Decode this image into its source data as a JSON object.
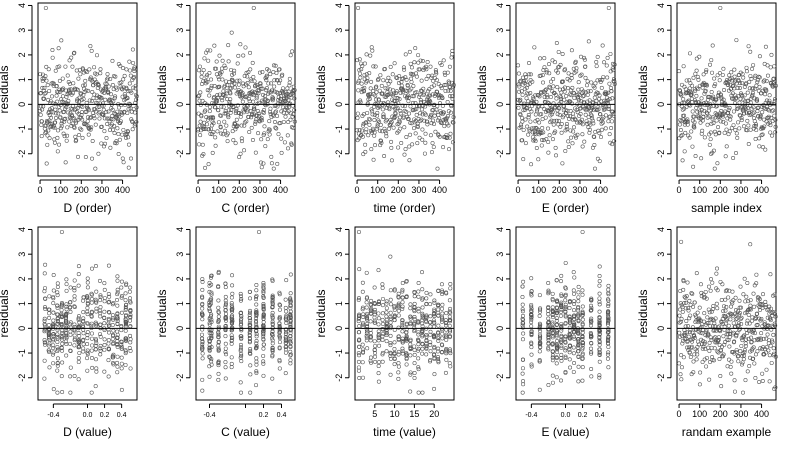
{
  "style": {
    "point_color": "#555555",
    "line_color": "#000000",
    "background": "#ffffff"
  },
  "chart_data": [
    {
      "type": "scatter",
      "xlabel": "D (order)",
      "ylabel": "residuals",
      "xlim": [
        -10,
        470
      ],
      "ylim": [
        -2.9,
        4.1
      ],
      "xticks": [
        0,
        100,
        200,
        300,
        400
      ],
      "yticks": [
        -2,
        -1,
        0,
        1,
        2,
        3,
        4
      ],
      "xtick_labels": [
        "0",
        "100",
        "200",
        "300",
        "400"
      ],
      "ytick_labels": [
        "-2",
        "-1",
        "0",
        "1",
        "2",
        "3",
        "4"
      ],
      "hline": 0,
      "x_pattern": {
        "kind": "index",
        "n": 470
      },
      "outliers": [
        {
          "x": 28,
          "y": 3.9
        }
      ],
      "seed": 11
    },
    {
      "type": "scatter",
      "xlabel": "C (order)",
      "ylabel": "residuals",
      "xlim": [
        -10,
        470
      ],
      "ylim": [
        -2.9,
        4.1
      ],
      "xticks": [
        0,
        100,
        200,
        300,
        400
      ],
      "yticks": [
        -2,
        -1,
        0,
        1,
        2,
        3,
        4
      ],
      "xtick_labels": [
        "0",
        "100",
        "200",
        "300",
        "400"
      ],
      "ytick_labels": [
        "-2",
        "-1",
        "0",
        "1",
        "2",
        "3",
        "4"
      ],
      "hline": 0,
      "x_pattern": {
        "kind": "index",
        "n": 470
      },
      "outliers": [
        {
          "x": 270,
          "y": 3.9
        }
      ],
      "seed": 23
    },
    {
      "type": "scatter",
      "xlabel": "time (order)",
      "ylabel": "residuals",
      "xlim": [
        -10,
        470
      ],
      "ylim": [
        -2.9,
        4.1
      ],
      "xticks": [
        0,
        100,
        200,
        300,
        400
      ],
      "yticks": [
        -2,
        -1,
        0,
        1,
        2,
        3,
        4
      ],
      "xtick_labels": [
        "0",
        "100",
        "200",
        "300",
        "400"
      ],
      "ytick_labels": [
        "-2",
        "-1",
        "0",
        "1",
        "2",
        "3",
        "4"
      ],
      "hline": 0,
      "x_pattern": {
        "kind": "index",
        "n": 470
      },
      "outliers": [
        {
          "x": 5,
          "y": 3.9
        }
      ],
      "seed": 37
    },
    {
      "type": "scatter",
      "xlabel": "E (order)",
      "ylabel": "residuals",
      "xlim": [
        -10,
        470
      ],
      "ylim": [
        -2.9,
        4.1
      ],
      "xticks": [
        0,
        100,
        200,
        300,
        400
      ],
      "yticks": [
        -2,
        -1,
        0,
        1,
        2,
        3,
        4
      ],
      "xtick_labels": [
        "0",
        "100",
        "200",
        "300",
        "400"
      ],
      "ytick_labels": [
        "-2",
        "-1",
        "0",
        "1",
        "2",
        "3",
        "4"
      ],
      "hline": 0,
      "x_pattern": {
        "kind": "index",
        "n": 470
      },
      "outliers": [
        {
          "x": 440,
          "y": 3.9
        }
      ],
      "seed": 41
    },
    {
      "type": "scatter",
      "xlabel": "sample index",
      "ylabel": "residuals",
      "xlim": [
        -10,
        470
      ],
      "ylim": [
        -2.9,
        4.1
      ],
      "xticks": [
        0,
        100,
        200,
        300,
        400
      ],
      "yticks": [
        -2,
        -1,
        0,
        1,
        2,
        3,
        4
      ],
      "xtick_labels": [
        "0",
        "100",
        "200",
        "300",
        "400"
      ],
      "ytick_labels": [
        "-2",
        "-1",
        "0",
        "1",
        "2",
        "3",
        "4"
      ],
      "hline": 0,
      "x_pattern": {
        "kind": "index",
        "n": 470
      },
      "outliers": [
        {
          "x": 200,
          "y": 3.9
        }
      ],
      "seed": 53
    },
    {
      "type": "scatter",
      "xlabel": "D (value)",
      "ylabel": "residuals",
      "xlim": [
        -0.58,
        0.58
      ],
      "ylim": [
        -2.9,
        4.1
      ],
      "xticks": [
        -0.4,
        0.0,
        0.2,
        0.4
      ],
      "yticks": [
        -2,
        -1,
        0,
        1,
        2,
        3,
        4
      ],
      "xtick_labels": [
        "-0.4",
        "0.0",
        "0.2",
        "0.4"
      ],
      "ytick_labels": [
        "-2",
        "-1",
        "0",
        "1",
        "2",
        "3",
        "4"
      ],
      "hline": 0,
      "x_pattern": {
        "kind": "discrete",
        "n": 470,
        "levels": [
          -0.5,
          -0.45,
          -0.4,
          -0.35,
          -0.3,
          -0.25,
          -0.2,
          -0.15,
          -0.1,
          -0.05,
          0.0,
          0.05,
          0.1,
          0.15,
          0.2,
          0.25,
          0.3,
          0.35,
          0.4,
          0.45,
          0.5
        ],
        "jitter": 0.005
      },
      "outliers": [
        {
          "x": -0.3,
          "y": 3.9
        }
      ],
      "seed": 67
    },
    {
      "type": "scatter",
      "xlabel": "C (value)",
      "ylabel": "residuals",
      "xlim": [
        -0.55,
        0.55
      ],
      "ylim": [
        -2.9,
        4.1
      ],
      "xticks": [
        -0.4,
        0.0,
        0.2,
        0.4
      ],
      "yticks": [
        -2,
        -1,
        0,
        1,
        2,
        3,
        4
      ],
      "xtick_labels": [
        "-0.4",
        "",
        "0.2",
        "0.4"
      ],
      "ytick_labels": [
        "-2",
        "-1",
        "0",
        "1",
        "2",
        "3",
        "4"
      ],
      "hline": 0,
      "x_pattern": {
        "kind": "discrete",
        "n": 470,
        "levels": [
          -0.48,
          -0.4,
          -0.38,
          -0.3,
          -0.22,
          -0.15,
          -0.05,
          0.05,
          0.12,
          0.2,
          0.3,
          0.38,
          0.45,
          0.5
        ],
        "jitter": 0.004
      },
      "outliers": [
        {
          "x": 0.15,
          "y": 3.9
        }
      ],
      "seed": 71
    },
    {
      "type": "scatter",
      "xlabel": "time (value)",
      "ylabel": "residuals",
      "xlim": [
        0,
        25
      ],
      "ylim": [
        -2.9,
        4.1
      ],
      "xticks": [
        5,
        10,
        15,
        20
      ],
      "yticks": [
        -2,
        -1,
        0,
        1,
        2,
        3,
        4
      ],
      "xtick_labels": [
        "5",
        "10",
        "15",
        "20"
      ],
      "ytick_labels": [
        "-2",
        "-1",
        "0",
        "1",
        "2",
        "3",
        "4"
      ],
      "hline": 0,
      "x_pattern": {
        "kind": "discrete",
        "n": 470,
        "levels": [
          1,
          2,
          3,
          4,
          5,
          6,
          7,
          8,
          9,
          10,
          11,
          12,
          13,
          14,
          15,
          16,
          17,
          18,
          19,
          20,
          21,
          22,
          23,
          24
        ],
        "jitter": 0.08
      },
      "outliers": [
        {
          "x": 1,
          "y": 3.9
        }
      ],
      "seed": 83
    },
    {
      "type": "scatter",
      "xlabel": "E (value)",
      "ylabel": "residuals",
      "xlim": [
        -0.58,
        0.58
      ],
      "ylim": [
        -2.9,
        4.1
      ],
      "xticks": [
        -0.4,
        0.0,
        0.2,
        0.4
      ],
      "yticks": [
        -2,
        -1,
        0,
        1,
        2,
        3,
        4
      ],
      "xtick_labels": [
        "-0.4",
        "0.0",
        "0.2",
        "0.4"
      ],
      "ytick_labels": [
        "-2",
        "-1",
        "0",
        "1",
        "2",
        "3",
        "4"
      ],
      "hline": 0,
      "x_pattern": {
        "kind": "discrete",
        "n": 470,
        "levels": [
          -0.5,
          -0.4,
          -0.3,
          -0.2,
          -0.15,
          -0.1,
          -0.05,
          0.0,
          0.05,
          0.1,
          0.15,
          0.2,
          0.3,
          0.4,
          0.5
        ],
        "jitter": 0.004
      },
      "outliers": [
        {
          "x": 0.2,
          "y": 3.9
        }
      ],
      "seed": 97
    },
    {
      "type": "scatter",
      "xlabel": "randam example",
      "ylabel": "residuals",
      "xlim": [
        -10,
        470
      ],
      "ylim": [
        -2.9,
        4.1
      ],
      "xticks": [
        0,
        100,
        200,
        300,
        400
      ],
      "yticks": [
        -2,
        -1,
        0,
        1,
        2,
        3,
        4
      ],
      "xtick_labels": [
        "0",
        "100",
        "200",
        "300",
        "400"
      ],
      "ytick_labels": [
        "-2",
        "-1",
        "0",
        "1",
        "2",
        "3",
        "4"
      ],
      "hline": 0,
      "x_pattern": {
        "kind": "index",
        "n": 470
      },
      "outliers": [
        {
          "x": 10,
          "y": 3.5
        },
        {
          "x": 345,
          "y": 3.4
        }
      ],
      "seed": 101
    }
  ]
}
